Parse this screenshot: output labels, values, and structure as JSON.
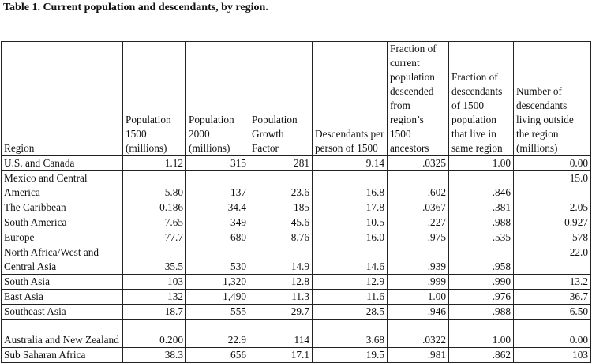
{
  "title": "Table 1. Current population and descendants, by region.",
  "headers": [
    "Region",
    "Population 1500 (millions)",
    "Population 2000 (millions)",
    "Population Growth Factor",
    "Descendants per person of 1500",
    "Fraction of current population descended from region’s 1500 ancestors",
    "Fraction of descendants of 1500 population that live in same region",
    "Number of descendants living outside the region (millions)"
  ],
  "rows": [
    {
      "region": "U.S. and Canada",
      "cells": [
        "1.12",
        "315",
        "281",
        "9.14",
        ".0325",
        "1.00",
        "0.00"
      ]
    },
    {
      "region": "Mexico and Central America",
      "cells": [
        "5.80",
        "137",
        "23.6",
        "16.8",
        ".602",
        ".846",
        "15.0"
      ]
    },
    {
      "region": "The Caribbean",
      "cells": [
        "0.186",
        "34.4",
        "185",
        "17.8",
        ".0367",
        ".381",
        "2.05"
      ]
    },
    {
      "region": "South America",
      "cells": [
        "7.65",
        "349",
        "45.6",
        "10.5",
        ".227",
        ".988",
        "0.927"
      ]
    },
    {
      "region": "Europe",
      "cells": [
        "77.7",
        "680",
        "8.76",
        "16.0",
        ".975",
        ".535",
        "578"
      ]
    },
    {
      "region": "North Africa/West and Central Asia",
      "cells": [
        "35.5",
        "530",
        "14.9",
        "14.6",
        ".939",
        ".958",
        "22.0"
      ]
    },
    {
      "region": "South Asia",
      "cells": [
        "103",
        "1,320",
        "12.8",
        "12.9",
        ".999",
        ".990",
        "13.2"
      ]
    },
    {
      "region": "East Asia",
      "cells": [
        "132",
        "1,490",
        "11.3",
        "11.6",
        "1.00",
        ".976",
        "36.7"
      ]
    },
    {
      "region": "Southeast Asia",
      "cells": [
        "18.7",
        "555",
        "29.7",
        "28.5",
        ".946",
        ".988",
        "6.50"
      ]
    },
    {
      "region": "Australia and New Zealand",
      "cells": [
        "0.200",
        "22.9",
        "114",
        "3.68",
        ".0322",
        "1.00",
        "0.00"
      ]
    },
    {
      "region": "Sub Saharan Africa",
      "cells": [
        "38.3",
        "656",
        "17.1",
        "19.5",
        ".981",
        ".862",
        "103"
      ]
    }
  ]
}
